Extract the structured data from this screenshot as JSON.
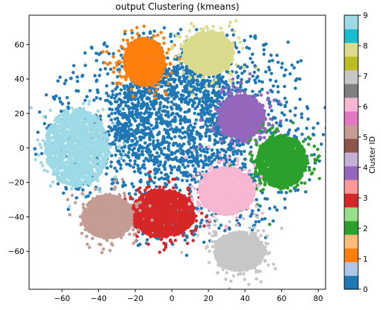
{
  "chart_data": {
    "type": "scatter",
    "title": "output Clustering (kmeans)",
    "xlim": [
      -78,
      84
    ],
    "ylim": [
      -82,
      77
    ],
    "xticks": [
      -60,
      -40,
      -20,
      0,
      20,
      40,
      60,
      80
    ],
    "yticks": [
      -60,
      -40,
      -20,
      0,
      20,
      40,
      60
    ],
    "colorbar": {
      "label": "Cluster ID",
      "ticks": [
        "0",
        "1",
        "2",
        "3",
        "4",
        "5",
        "6",
        "7",
        "8",
        "9"
      ],
      "colors": [
        "#1f77b4",
        "#aec7e8",
        "#ff7f0e",
        "#ffbb78",
        "#2ca02c",
        "#98df8a",
        "#d62728",
        "#ff9896",
        "#9467bd",
        "#c5b0d5",
        "#8c564b",
        "#c49c94",
        "#e377c2",
        "#f7b6d2",
        "#7f7f7f",
        "#c7c7c7",
        "#bcbd22",
        "#dbdb8d",
        "#17becf",
        "#9edae5"
      ]
    },
    "series": [
      {
        "cluster": "0",
        "color": "#1f77b4",
        "center": [
          5,
          18
        ],
        "spread": [
          32,
          24
        ],
        "note": "central spread cluster"
      },
      {
        "cluster": "1",
        "color": "#ff7f0e",
        "center": [
          -15,
          50
        ],
        "spread": [
          9,
          11
        ]
      },
      {
        "cluster": "2",
        "color": "#2ca02c",
        "center": [
          60,
          -8
        ],
        "spread": [
          11,
          12
        ]
      },
      {
        "cluster": "3",
        "color": "#d62728",
        "center": [
          -5,
          -38
        ],
        "spread": [
          14,
          11
        ]
      },
      {
        "cluster": "4",
        "color": "#9467bd",
        "center": [
          38,
          18
        ],
        "spread": [
          10,
          10
        ]
      },
      {
        "cluster": "5",
        "color": "#c49c94",
        "center": [
          -35,
          -40
        ],
        "spread": [
          11,
          10
        ]
      },
      {
        "cluster": "6",
        "color": "#f7b6d2",
        "center": [
          30,
          -25
        ],
        "spread": [
          12,
          11
        ]
      },
      {
        "cluster": "7",
        "color": "#c7c7c7",
        "center": [
          37,
          -60
        ],
        "spread": [
          11,
          9
        ]
      },
      {
        "cluster": "8",
        "color": "#dbdb8d",
        "center": [
          20,
          55
        ],
        "spread": [
          11,
          10
        ]
      },
      {
        "cluster": "9",
        "color": "#9edae5",
        "center": [
          -52,
          0
        ],
        "spread": [
          14,
          18
        ]
      }
    ]
  }
}
